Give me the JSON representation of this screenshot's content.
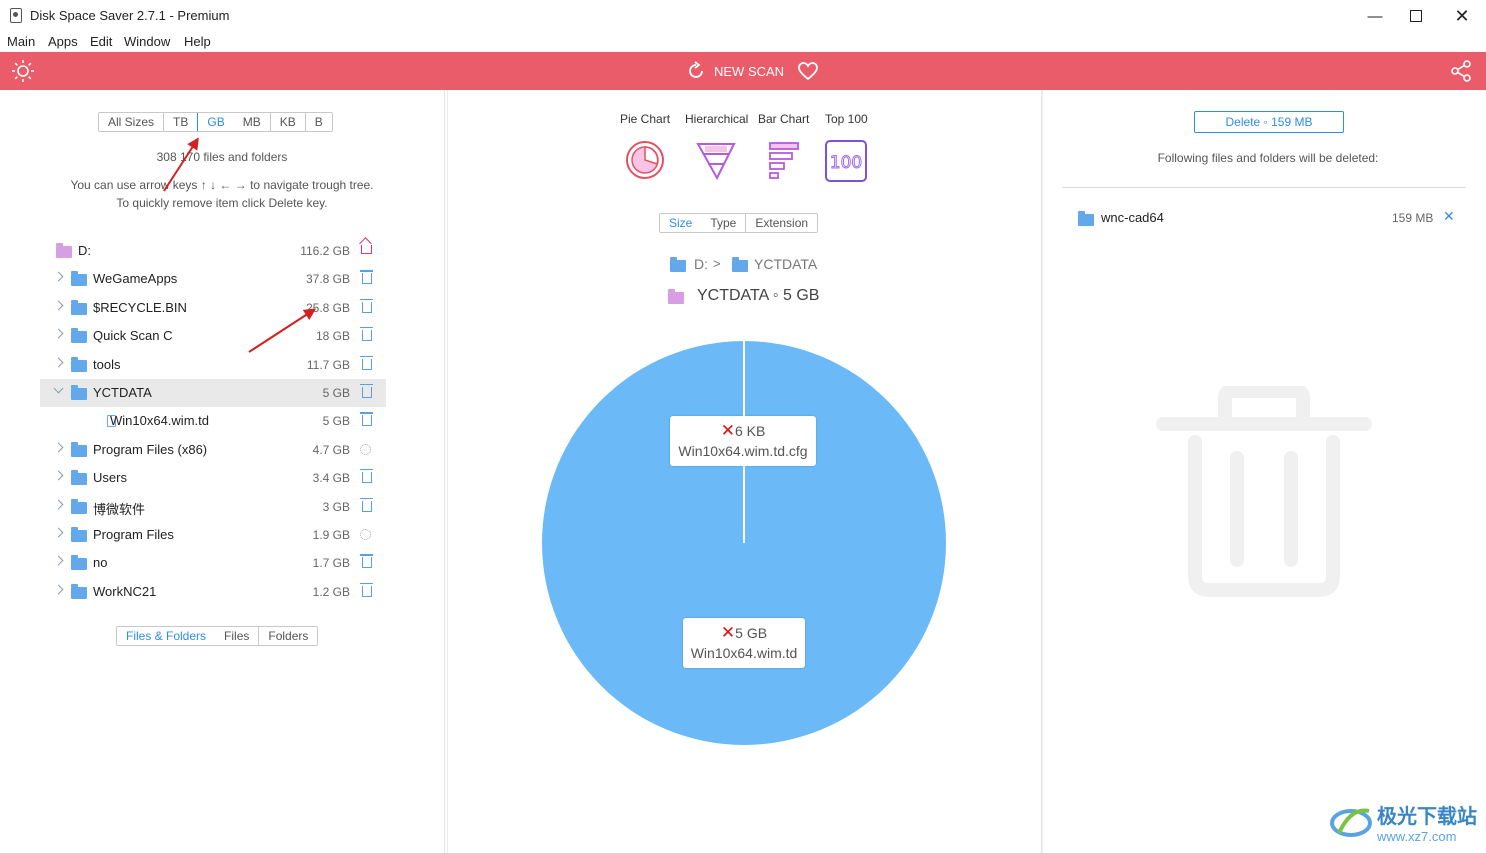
{
  "window": {
    "title": "Disk Space Saver 2.7.1 - Premium"
  },
  "menu": [
    "Main",
    "Apps",
    "Edit",
    "Window",
    "Help"
  ],
  "toolbar": {
    "new_scan": "NEW SCAN"
  },
  "left": {
    "size_filters": [
      "All Sizes",
      "TB",
      "GB",
      "MB",
      "KB",
      "B"
    ],
    "active_size_filter": "GB",
    "count_text": "308 170 files and folders",
    "hint_line1": "You can use arrow keys ↑ ↓ ← → to navigate trough tree.",
    "hint_line2": "To quickly remove item click Delete key.",
    "tree": [
      {
        "name": "D:",
        "size": "116.2 GB",
        "action": "home-icon",
        "indent": 0,
        "type": "root"
      },
      {
        "name": "WeGameApps",
        "size": "37.8 GB",
        "action": "trash-icon",
        "indent": 0,
        "type": "folder"
      },
      {
        "name": "$RECYCLE.BIN",
        "size": "25.8 GB",
        "action": "trash-icon",
        "indent": 0,
        "type": "folder"
      },
      {
        "name": "Quick Scan C",
        "size": "18 GB",
        "action": "trash-icon",
        "indent": 0,
        "type": "folder"
      },
      {
        "name": "tools",
        "size": "11.7 GB",
        "action": "trash-icon",
        "indent": 0,
        "type": "folder"
      },
      {
        "name": "YCTDATA",
        "size": "5 GB",
        "action": "trash-icon",
        "indent": 0,
        "type": "folder",
        "expanded": true,
        "selected": true
      },
      {
        "name": "Win10x64.wim.td",
        "size": "5 GB",
        "action": "trash-icon",
        "indent": 1,
        "type": "file"
      },
      {
        "name": "Program Files (x86)",
        "size": "4.7 GB",
        "action": "gear-icon",
        "indent": 0,
        "type": "folder"
      },
      {
        "name": "Users",
        "size": "3.4 GB",
        "action": "trash-icon",
        "indent": 0,
        "type": "folder"
      },
      {
        "name": "博微软件",
        "size": "3 GB",
        "action": "trash-icon",
        "indent": 0,
        "type": "folder"
      },
      {
        "name": "Program Files",
        "size": "1.9 GB",
        "action": "gear-icon",
        "indent": 0,
        "type": "folder"
      },
      {
        "name": "no",
        "size": "1.7 GB",
        "action": "trash-icon",
        "indent": 0,
        "type": "folder"
      },
      {
        "name": "WorkNC21",
        "size": "1.2 GB",
        "action": "trash-icon",
        "indent": 0,
        "type": "folder"
      }
    ],
    "view_filters": [
      "Files & Folders",
      "Files",
      "Folders"
    ],
    "active_view_filter": "Files & Folders"
  },
  "middle": {
    "chart_types": [
      "Pie Chart",
      "Hierarchical",
      "Bar Chart",
      "Top 100"
    ],
    "group_tabs": [
      "Size",
      "Type",
      "Extension"
    ],
    "active_group_tab": "Size",
    "breadcrumb": [
      "D:",
      "YCTDATA"
    ],
    "current": "YCTDATA ◦ 5 GB",
    "pie": {
      "color": "#6bbaf7",
      "labels": [
        {
          "size": "6 KB",
          "name": "Win10x64.wim.td.cfg"
        },
        {
          "size": "5 GB",
          "name": "Win10x64.wim.td"
        }
      ]
    }
  },
  "right": {
    "delete_button": "Delete ◦ 159 MB",
    "following_text": "Following files and folders will be deleted:",
    "items": [
      {
        "name": "wnc-cad64",
        "size": "159 MB"
      }
    ]
  },
  "watermark": {
    "text": "极光下载站",
    "url": "www.xz7.com"
  }
}
